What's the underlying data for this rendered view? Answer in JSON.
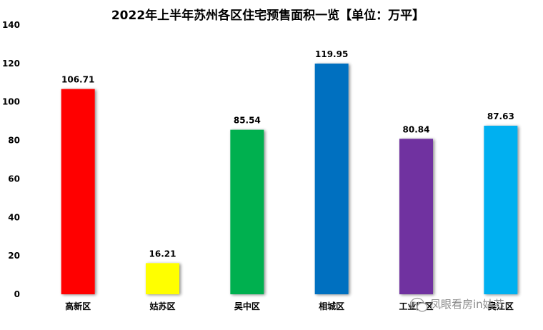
{
  "chart_data": {
    "type": "bar",
    "title": "2022年上半年苏州各区住宅预售面积一览【单位：万平】",
    "categories": [
      "高新区",
      "姑苏区",
      "吴中区",
      "相城区",
      "工业园区",
      "吴江区"
    ],
    "values": [
      106.71,
      16.21,
      85.54,
      119.95,
      80.84,
      87.63
    ],
    "value_labels": [
      "106.71",
      "16.21",
      "85.54",
      "119.95",
      "80.84",
      "87.63"
    ],
    "colors": [
      "#FF0000",
      "#FFFF00",
      "#00B050",
      "#0070C0",
      "#7030A0",
      "#00B0F0"
    ],
    "ylim": [
      0,
      140
    ],
    "yticks": [
      0,
      20,
      40,
      60,
      80,
      100,
      120,
      140
    ],
    "xlabel": "",
    "ylabel": "",
    "grid": false,
    "legend": "none"
  },
  "watermark": {
    "text": "凤眼看房in姑苏",
    "icon": "wechat-icon"
  }
}
